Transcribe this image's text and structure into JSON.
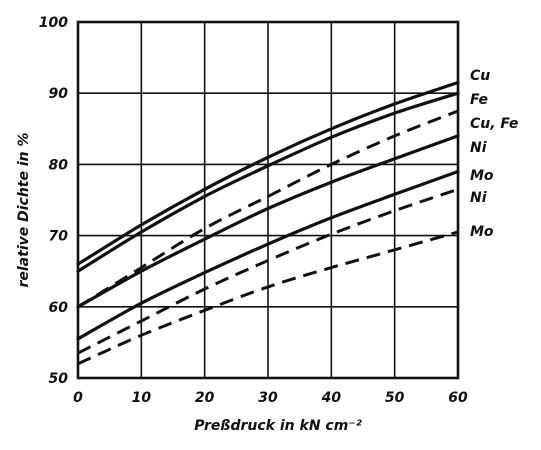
{
  "chart_data": {
    "type": "line",
    "title": "",
    "xlabel": "Preßdruck in kN cm⁻²",
    "ylabel": "relative Dichte in %",
    "xlim": [
      0,
      60
    ],
    "ylim": [
      50,
      100
    ],
    "x_ticks": [
      "0",
      "10",
      "20",
      "30",
      "40",
      "50",
      "60"
    ],
    "y_ticks": [
      "50",
      "60",
      "70",
      "80",
      "90",
      "100"
    ],
    "grid": true,
    "x": [
      0,
      10,
      20,
      30,
      40,
      50,
      60
    ],
    "series": [
      {
        "name": "Cu",
        "style": "solid",
        "values": [
          66,
          71.5,
          76.5,
          81,
          85,
          88.5,
          91.5
        ]
      },
      {
        "name": "Fe",
        "style": "solid",
        "values": [
          65,
          70.5,
          75.5,
          79.8,
          83.8,
          87.2,
          90
        ]
      },
      {
        "name": "Cu, Fe",
        "style": "dashed",
        "values": [
          60,
          65.5,
          71,
          75.5,
          80,
          84,
          87.5
        ]
      },
      {
        "name": "Ni",
        "style": "solid",
        "values": [
          60,
          65,
          69.5,
          73.8,
          77.5,
          80.8,
          84
        ]
      },
      {
        "name": "Mo",
        "style": "solid",
        "values": [
          55.5,
          60.5,
          64.8,
          68.8,
          72.5,
          75.8,
          79
        ]
      },
      {
        "name": "Ni",
        "style": "dashed",
        "values": [
          53.5,
          58,
          62.5,
          66.5,
          70.2,
          73.5,
          76.5
        ]
      },
      {
        "name": "Mo",
        "style": "dashed",
        "values": [
          52,
          56,
          59.5,
          62.8,
          65.5,
          68,
          70.5
        ]
      }
    ]
  }
}
